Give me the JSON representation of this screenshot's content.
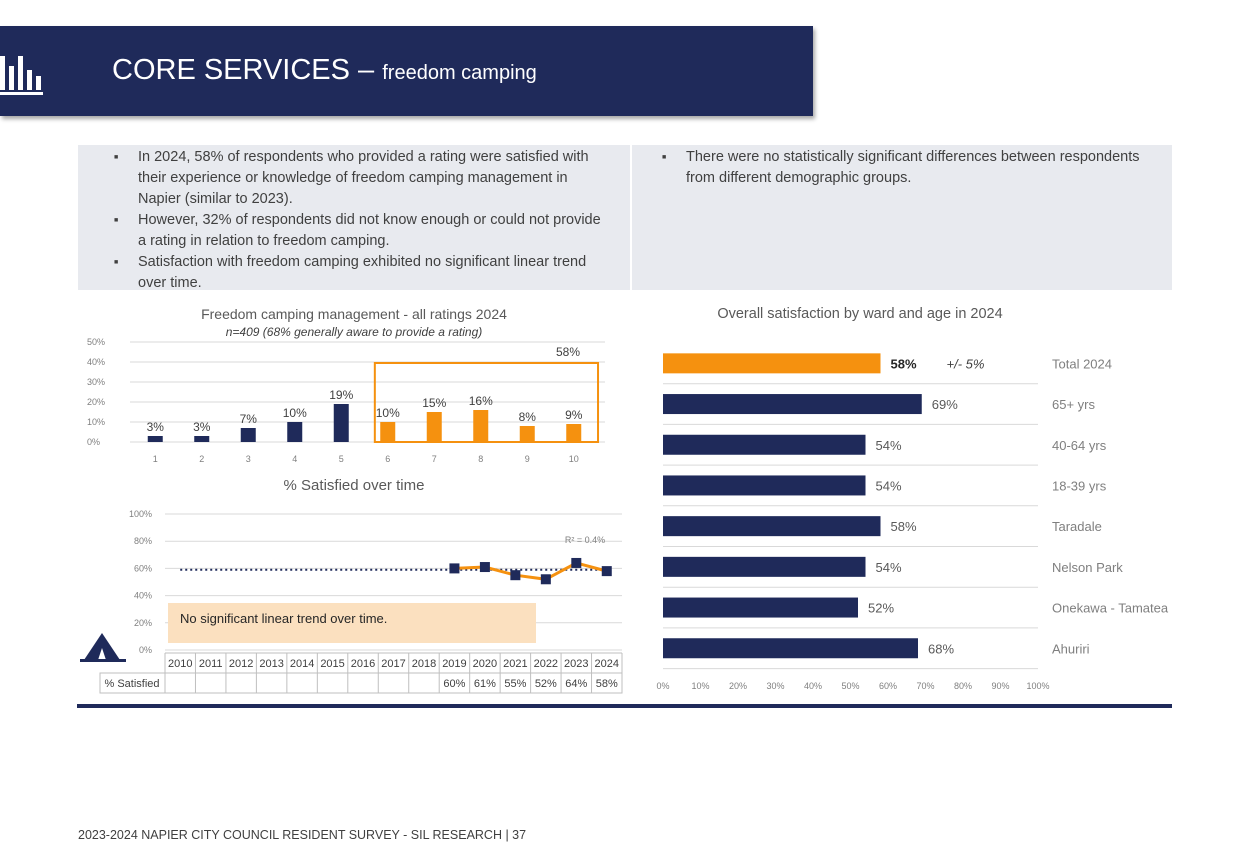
{
  "header": {
    "title_main": "CORE SERVICES –",
    "title_sub": "freedom camping",
    "icon": "bar-chart-icon"
  },
  "summary_left": [
    "In 2024, 58% of respondents who provided a rating were satisfied with their experience or knowledge of freedom camping management in Napier (similar to 2023).",
    "However, 32% of respondents did not know enough or could not provide a rating in relation to freedom camping.",
    "Satisfaction with freedom camping exhibited no significant linear trend over time."
  ],
  "summary_right": [
    "There were no statistically significant differences between respondents from different demographic groups."
  ],
  "note": "No significant linear trend over time.",
  "footer": "2023-2024 NAPIER CITY COUNCIL RESIDENT SURVEY - SIL RESEARCH | 37",
  "colors": {
    "navy": "#1f2a5a",
    "orange": "#f5910f",
    "box_bg": "#e8eaef",
    "note_bg": "#fbe0bf"
  },
  "chart_data": [
    {
      "type": "bar",
      "title": "Freedom camping management - all ratings 2024",
      "subtitle": "n=409 (68% generally aware to provide a rating)",
      "categories": [
        "1",
        "2",
        "3",
        "4",
        "5",
        "6",
        "7",
        "8",
        "9",
        "10"
      ],
      "values": [
        3,
        3,
        7,
        10,
        19,
        10,
        15,
        16,
        8,
        9
      ],
      "data_labels": [
        "3%",
        "3%",
        "7%",
        "10%",
        "19%",
        "10%",
        "15%",
        "16%",
        "8%",
        "9%"
      ],
      "highlight_label": "58%",
      "y_ticks": [
        "0%",
        "10%",
        "20%",
        "30%",
        "40%",
        "50%"
      ],
      "ylim": [
        0,
        50
      ],
      "colors": [
        "#1f2a5a",
        "#1f2a5a",
        "#1f2a5a",
        "#1f2a5a",
        "#1f2a5a",
        "#f5910f",
        "#f5910f",
        "#f5910f",
        "#f5910f",
        "#f5910f"
      ]
    },
    {
      "type": "line",
      "title": "% Satisfied over time",
      "years": [
        "2010",
        "2011",
        "2012",
        "2013",
        "2014",
        "2015",
        "2016",
        "2017",
        "2018",
        "2019",
        "2020",
        "2021",
        "2022",
        "2023",
        "2024"
      ],
      "series": [
        {
          "name": "% Satisfied",
          "values": [
            null,
            null,
            null,
            null,
            null,
            null,
            null,
            null,
            null,
            60,
            61,
            55,
            52,
            64,
            58
          ],
          "labels": [
            "",
            "",
            "",
            "",
            "",
            "",
            "",
            "",
            "",
            "60%",
            "61%",
            "55%",
            "52%",
            "64%",
            "58%"
          ]
        }
      ],
      "trend_label": "R² = 0.4%",
      "y_ticks": [
        "0%",
        "20%",
        "40%",
        "60%",
        "80%",
        "100%"
      ],
      "ylim": [
        0,
        100
      ],
      "gridlines": true
    },
    {
      "type": "bar",
      "orientation": "horizontal",
      "title": "Overall satisfaction by ward and age in 2024",
      "categories": [
        "Total 2024",
        "65+ yrs",
        "40-64 yrs",
        "18-39 yrs",
        "Taradale",
        "Nelson Park",
        "Onekawa - Tamatea",
        "Ahuriri"
      ],
      "values": [
        58,
        69,
        54,
        54,
        58,
        54,
        52,
        68
      ],
      "data_labels": [
        "58%",
        "69%",
        "54%",
        "54%",
        "58%",
        "54%",
        "52%",
        "68%"
      ],
      "margin_label": "+/- 5%",
      "x_ticks": [
        "0%",
        "10%",
        "20%",
        "30%",
        "40%",
        "50%",
        "60%",
        "70%",
        "80%",
        "90%",
        "100%"
      ],
      "xlim": [
        0,
        100
      ],
      "colors": [
        "#f5910f",
        "#1f2a5a",
        "#1f2a5a",
        "#1f2a5a",
        "#1f2a5a",
        "#1f2a5a",
        "#1f2a5a",
        "#1f2a5a"
      ]
    }
  ]
}
